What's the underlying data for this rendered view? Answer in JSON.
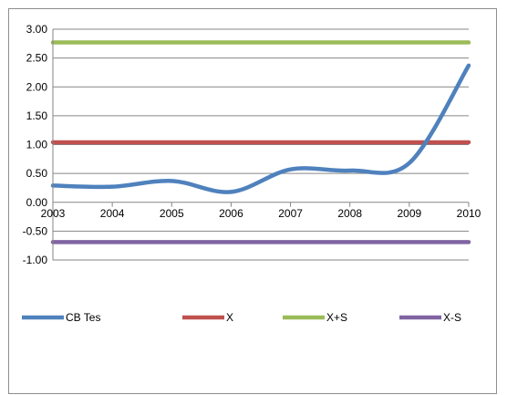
{
  "chart_data": {
    "type": "line",
    "categories": [
      "2003",
      "2004",
      "2005",
      "2006",
      "2007",
      "2008",
      "2009",
      "2010"
    ],
    "y_tick_labels": [
      "3.00",
      "2.50",
      "2.00",
      "1.50",
      "1.00",
      "0.50",
      "0.00",
      "-0.50",
      "-1.00"
    ],
    "ylim": [
      -1.0,
      3.0
    ],
    "grid": true,
    "legend_position": "bottom",
    "smooth": true,
    "series": [
      {
        "name": "CB Tes",
        "color": "#4f81bd",
        "values": [
          0.29,
          0.27,
          0.37,
          0.18,
          0.57,
          0.55,
          0.68,
          2.37
        ]
      },
      {
        "name": "X",
        "color": "#c0504d",
        "values": [
          1.04,
          1.04,
          1.04,
          1.04,
          1.04,
          1.04,
          1.04,
          1.04
        ]
      },
      {
        "name": "X+S",
        "color": "#9bbb59",
        "values": [
          2.77,
          2.77,
          2.77,
          2.77,
          2.77,
          2.77,
          2.77,
          2.77
        ]
      },
      {
        "name": "X-S",
        "color": "#8064a2",
        "values": [
          -0.69,
          -0.69,
          -0.69,
          -0.69,
          -0.69,
          -0.69,
          -0.69,
          -0.69
        ]
      }
    ]
  }
}
